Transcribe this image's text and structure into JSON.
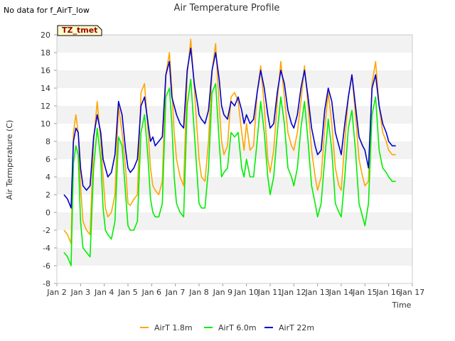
{
  "page": {
    "no_data_message": "No data for f_AirT_low",
    "badge": "TZ_tmet"
  },
  "chart_data": {
    "type": "line",
    "title": "Air Temperature Profile",
    "xlabel": "Time",
    "ylabel": "Air Termperature (C)",
    "xlim": [
      2,
      17
    ],
    "ylim": [
      -8,
      20
    ],
    "x_ticks": [
      2,
      3,
      4,
      5,
      6,
      7,
      8,
      9,
      10,
      11,
      12,
      13,
      14,
      15,
      16,
      17
    ],
    "x_tick_labels": [
      "Jan 2",
      "Jan 3",
      "Jan 4",
      "Jan 5",
      "Jan 6",
      "Jan 7",
      "Jan 8",
      "Jan 9",
      "Jan 10",
      "Jan 11",
      "Jan 12",
      "Jan 13",
      "Jan 14",
      "Jan 15",
      "Jan 16",
      "Jan 17"
    ],
    "y_ticks": [
      -8,
      -6,
      -4,
      -2,
      0,
      2,
      4,
      6,
      8,
      10,
      12,
      14,
      16,
      18,
      20
    ],
    "y_tick_labels": [
      "-8",
      "-6",
      "-4",
      "-2",
      "0",
      "2",
      "4",
      "6",
      "8",
      "10",
      "12",
      "14",
      "16",
      "18",
      "20"
    ],
    "grid": "horizontal bands",
    "legend_position": "bottom",
    "series": [
      {
        "name": "AirT 1.8m",
        "color": "#ffa500",
        "x": [
          2.3,
          2.45,
          2.6,
          2.7,
          2.8,
          2.9,
          3.0,
          3.1,
          3.25,
          3.4,
          3.55,
          3.7,
          3.85,
          3.95,
          4.05,
          4.15,
          4.3,
          4.45,
          4.6,
          4.75,
          4.9,
          5.0,
          5.1,
          5.25,
          5.4,
          5.55,
          5.7,
          5.85,
          5.95,
          6.05,
          6.15,
          6.3,
          6.45,
          6.6,
          6.75,
          6.85,
          6.95,
          7.05,
          7.2,
          7.35,
          7.5,
          7.65,
          7.8,
          7.95,
          8.0,
          8.1,
          8.25,
          8.4,
          8.55,
          8.7,
          8.85,
          8.95,
          9.05,
          9.2,
          9.35,
          9.5,
          9.65,
          9.8,
          9.9,
          10.0,
          10.15,
          10.3,
          10.45,
          10.6,
          10.75,
          10.9,
          11.0,
          11.15,
          11.3,
          11.45,
          11.6,
          11.75,
          11.9,
          12.0,
          12.15,
          12.3,
          12.45,
          12.6,
          12.75,
          12.9,
          13.0,
          13.15,
          13.3,
          13.45,
          13.6,
          13.75,
          13.9,
          14.0,
          14.15,
          14.3,
          14.45,
          14.6,
          14.75,
          14.9,
          15.0,
          15.15,
          15.3,
          15.45,
          15.6,
          15.75,
          15.9,
          16.0,
          16.15,
          16.3
        ],
        "y": [
          -2.0,
          -2.5,
          -3.5,
          9.0,
          11.0,
          9.0,
          3.0,
          -1.0,
          -2.0,
          -2.5,
          8.0,
          12.5,
          8.0,
          4.0,
          0.5,
          -0.5,
          0.0,
          2.0,
          12.0,
          9.0,
          5.0,
          1.0,
          0.8,
          1.5,
          2.0,
          13.5,
          14.5,
          9.0,
          5.0,
          3.0,
          2.5,
          2.0,
          3.5,
          15.5,
          18.0,
          14.0,
          9.0,
          6.0,
          4.0,
          3.0,
          15.5,
          19.5,
          14.0,
          8.0,
          6.0,
          4.0,
          3.5,
          8.0,
          16.0,
          19.0,
          12.0,
          8.0,
          6.5,
          7.5,
          13.0,
          13.5,
          12.5,
          9.0,
          7.0,
          10.0,
          7.0,
          7.5,
          13.5,
          16.5,
          12.0,
          6.0,
          4.5,
          7.0,
          12.5,
          17.0,
          13.0,
          9.0,
          7.5,
          7.0,
          9.0,
          12.5,
          16.5,
          12.0,
          7.0,
          4.0,
          2.5,
          4.0,
          9.5,
          13.5,
          10.0,
          5.0,
          3.0,
          2.5,
          8.0,
          13.0,
          15.5,
          11.0,
          6.0,
          4.0,
          3.0,
          3.5,
          14.5,
          17.0,
          12.0,
          9.0,
          8.0,
          7.0,
          6.5,
          6.5
        ]
      },
      {
        "name": "AirT 6.0m",
        "color": "#00ee00",
        "x": [
          2.3,
          2.45,
          2.6,
          2.7,
          2.8,
          2.9,
          3.0,
          3.1,
          3.25,
          3.4,
          3.55,
          3.7,
          3.85,
          3.95,
          4.05,
          4.15,
          4.3,
          4.45,
          4.6,
          4.75,
          4.9,
          5.0,
          5.1,
          5.25,
          5.4,
          5.55,
          5.7,
          5.85,
          5.95,
          6.05,
          6.15,
          6.3,
          6.45,
          6.6,
          6.75,
          6.85,
          6.95,
          7.05,
          7.2,
          7.35,
          7.5,
          7.65,
          7.8,
          7.95,
          8.0,
          8.1,
          8.25,
          8.4,
          8.55,
          8.7,
          8.85,
          8.95,
          9.05,
          9.2,
          9.35,
          9.5,
          9.65,
          9.8,
          9.9,
          10.0,
          10.15,
          10.3,
          10.45,
          10.6,
          10.75,
          10.9,
          11.0,
          11.15,
          11.3,
          11.45,
          11.6,
          11.75,
          11.9,
          12.0,
          12.15,
          12.3,
          12.45,
          12.6,
          12.75,
          12.9,
          13.0,
          13.15,
          13.3,
          13.45,
          13.6,
          13.75,
          13.9,
          14.0,
          14.15,
          14.3,
          14.45,
          14.6,
          14.75,
          14.9,
          15.0,
          15.15,
          15.3,
          15.45,
          15.6,
          15.75,
          15.9,
          16.0,
          16.15,
          16.3
        ],
        "y": [
          -4.5,
          -5.0,
          -6.0,
          5.5,
          7.5,
          6.5,
          -1.0,
          -4.0,
          -4.5,
          -5.0,
          5.0,
          9.5,
          6.0,
          0.5,
          -2.0,
          -2.5,
          -3.0,
          -1.0,
          8.5,
          7.5,
          2.0,
          -1.5,
          -2.0,
          -2.0,
          -1.0,
          9.0,
          11.0,
          6.0,
          1.5,
          0.0,
          -0.5,
          -0.5,
          1.0,
          13.0,
          14.0,
          10.0,
          4.0,
          1.0,
          0.0,
          -0.5,
          12.0,
          15.0,
          9.0,
          3.0,
          1.0,
          0.5,
          0.5,
          5.0,
          13.5,
          14.5,
          8.0,
          4.0,
          4.5,
          5.0,
          9.0,
          8.5,
          9.0,
          5.0,
          4.0,
          6.0,
          4.0,
          4.0,
          8.0,
          12.5,
          9.0,
          4.0,
          2.0,
          4.0,
          9.0,
          13.0,
          10.0,
          5.0,
          4.0,
          3.0,
          5.0,
          9.5,
          12.5,
          8.0,
          3.0,
          1.0,
          -0.5,
          1.0,
          6.0,
          10.5,
          7.0,
          1.0,
          0.0,
          -0.5,
          4.0,
          9.5,
          11.5,
          7.0,
          1.0,
          -0.5,
          -1.5,
          1.0,
          11.0,
          13.0,
          7.0,
          5.0,
          4.5,
          4.0,
          3.5,
          3.5
        ]
      },
      {
        "name": "AirT 22m",
        "color": "#0000cc",
        "x": [
          2.3,
          2.45,
          2.6,
          2.7,
          2.8,
          2.9,
          3.0,
          3.1,
          3.25,
          3.4,
          3.55,
          3.7,
          3.85,
          3.95,
          4.05,
          4.15,
          4.3,
          4.45,
          4.6,
          4.75,
          4.9,
          5.0,
          5.1,
          5.25,
          5.4,
          5.55,
          5.7,
          5.85,
          5.95,
          6.05,
          6.15,
          6.3,
          6.45,
          6.6,
          6.75,
          6.85,
          6.95,
          7.05,
          7.2,
          7.35,
          7.5,
          7.65,
          7.8,
          7.95,
          8.0,
          8.1,
          8.25,
          8.4,
          8.55,
          8.7,
          8.85,
          8.95,
          9.05,
          9.2,
          9.35,
          9.5,
          9.65,
          9.8,
          9.9,
          10.0,
          10.15,
          10.3,
          10.45,
          10.6,
          10.75,
          10.9,
          11.0,
          11.15,
          11.3,
          11.45,
          11.6,
          11.75,
          11.9,
          12.0,
          12.15,
          12.3,
          12.45,
          12.6,
          12.75,
          12.9,
          13.0,
          13.15,
          13.3,
          13.45,
          13.6,
          13.75,
          13.9,
          14.0,
          14.15,
          14.3,
          14.45,
          14.6,
          14.75,
          14.9,
          15.0,
          15.15,
          15.3,
          15.45,
          15.6,
          15.75,
          15.9,
          16.0,
          16.15,
          16.3
        ],
        "y": [
          2.0,
          1.5,
          0.5,
          8.0,
          9.5,
          9.0,
          5.0,
          3.0,
          2.5,
          3.0,
          8.5,
          11.0,
          9.0,
          6.0,
          5.0,
          4.0,
          4.5,
          6.5,
          12.5,
          11.0,
          7.0,
          5.0,
          4.5,
          5.0,
          6.0,
          12.0,
          13.0,
          10.0,
          8.0,
          8.5,
          7.5,
          8.0,
          8.5,
          15.5,
          17.0,
          13.0,
          12.0,
          11.0,
          10.0,
          9.5,
          16.0,
          18.5,
          14.5,
          12.0,
          11.0,
          10.5,
          10.0,
          11.5,
          16.0,
          18.0,
          15.0,
          12.0,
          11.0,
          10.5,
          12.5,
          12.0,
          13.0,
          11.5,
          10.0,
          11.0,
          10.0,
          10.5,
          13.5,
          16.0,
          14.0,
          11.0,
          9.5,
          10.0,
          13.5,
          16.0,
          14.5,
          11.5,
          10.0,
          9.5,
          11.0,
          14.0,
          16.0,
          13.0,
          9.5,
          7.5,
          6.5,
          7.0,
          11.5,
          14.0,
          12.5,
          9.0,
          7.5,
          6.5,
          10.0,
          13.0,
          15.5,
          12.0,
          8.5,
          7.5,
          7.0,
          5.0,
          14.0,
          15.5,
          12.0,
          10.0,
          9.0,
          8.0,
          7.5,
          7.5
        ]
      }
    ]
  }
}
